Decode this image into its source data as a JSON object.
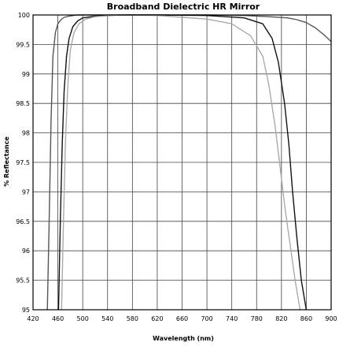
{
  "chart_data": {
    "type": "line",
    "title": "Broadband Dielectric HR Mirror",
    "xlabel": "Wavelength (nm)",
    "ylabel": "% Reflectance",
    "xlim": [
      420,
      900
    ],
    "ylim": [
      95,
      100
    ],
    "x_ticks": [
      420,
      460,
      500,
      540,
      580,
      620,
      660,
      700,
      740,
      780,
      820,
      860,
      900
    ],
    "x_tick_labels": [
      "420",
      "460",
      "500",
      "540",
      "580",
      "620",
      "660",
      "700",
      "740",
      "780",
      "820",
      "860",
      "900"
    ],
    "y_ticks": [
      95,
      95.5,
      96,
      96.5,
      97,
      97.5,
      98,
      98.5,
      99,
      99.5,
      100
    ],
    "y_tick_labels": [
      "95",
      "95.5",
      "96",
      "96.5",
      "97",
      "97.5",
      "98",
      "98.5",
      "99",
      "99.5",
      "100"
    ],
    "grid": true,
    "series": [
      {
        "color": "#555555",
        "x": [
          443,
          446,
          449,
          452,
          456,
          460,
          465,
          470,
          478,
          490,
          520,
          560,
          620,
          700,
          760,
          800,
          830,
          845,
          860,
          875,
          890,
          900
        ],
        "y": [
          95,
          96.5,
          98.2,
          99.3,
          99.7,
          99.85,
          99.92,
          99.96,
          99.98,
          100,
          100,
          100,
          100,
          100,
          99.99,
          99.97,
          99.95,
          99.92,
          99.87,
          99.78,
          99.65,
          99.55
        ]
      },
      {
        "color": "#111111",
        "x": [
          461,
          464,
          467,
          470,
          474,
          478,
          484,
          492,
          500,
          520,
          560,
          620,
          700,
          760,
          790,
          805,
          815,
          825,
          832,
          838,
          845,
          852,
          860
        ],
        "y": [
          95,
          96.5,
          97.8,
          98.7,
          99.3,
          99.6,
          99.8,
          99.9,
          99.95,
          99.98,
          100,
          100,
          99.99,
          99.95,
          99.85,
          99.6,
          99.2,
          98.5,
          97.8,
          97,
          96.2,
          95.5,
          95
        ]
      },
      {
        "color": "#aaaaaa",
        "x": [
          466,
          469,
          472,
          476,
          480,
          486,
          494,
          505,
          520,
          560,
          620,
          700,
          740,
          770,
          790,
          800,
          810,
          818,
          826,
          834,
          842,
          850
        ],
        "y": [
          95,
          96.5,
          97.8,
          98.8,
          99.4,
          99.7,
          99.85,
          99.93,
          99.97,
          100,
          99.99,
          99.93,
          99.85,
          99.65,
          99.3,
          98.8,
          98.1,
          97.4,
          96.7,
          96.1,
          95.5,
          95
        ]
      }
    ]
  }
}
